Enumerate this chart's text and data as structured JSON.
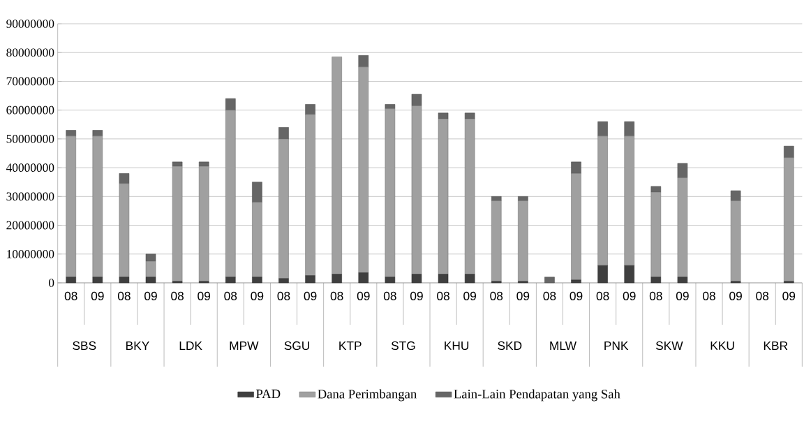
{
  "chart_data": {
    "type": "bar",
    "stacked": true,
    "categories": [
      "08",
      "09",
      "08",
      "09",
      "08",
      "09",
      "08",
      "09",
      "08",
      "09",
      "08",
      "09",
      "08",
      "09",
      "08",
      "09",
      "08",
      "09",
      "08",
      "09",
      "08",
      "09",
      "08",
      "09",
      "08",
      "09",
      "08",
      "09"
    ],
    "annotations": [
      "SBS",
      "BKY",
      "LDK",
      "MPW",
      "SGU",
      "KTP",
      "STG",
      "KHU",
      "SKD",
      "MLW",
      "PNK",
      "SKW",
      "KKU",
      "KBR"
    ],
    "series": [
      {
        "name": "PAD",
        "color": "#3f3f3f",
        "values": [
          2000000,
          2000000,
          2000000,
          2000000,
          500000,
          500000,
          2000000,
          2000000,
          1500000,
          2500000,
          3000000,
          3500000,
          2000000,
          3000000,
          3000000,
          3000000,
          500000,
          500000,
          0,
          1000000,
          6000000,
          6000000,
          2000000,
          2000000,
          0,
          500000,
          0,
          500000
        ]
      },
      {
        "name": "Dana Perimbangan",
        "color": "#a0a0a0",
        "values": [
          49000000,
          49000000,
          32500000,
          5500000,
          40000000,
          40000000,
          58000000,
          26000000,
          48500000,
          56000000,
          75500000,
          71500000,
          58500000,
          58500000,
          54000000,
          54000000,
          28000000,
          28000000,
          0,
          37000000,
          45000000,
          45000000,
          29500000,
          34500000,
          0,
          28000000,
          0,
          43000000
        ]
      },
      {
        "name": "Lain-Lain Pendapatan yang Sah",
        "color": "#666666",
        "values": [
          2000000,
          2000000,
          3500000,
          2500000,
          1500000,
          1500000,
          4000000,
          7000000,
          4000000,
          3500000,
          0,
          4000000,
          1500000,
          4000000,
          2000000,
          2000000,
          1500000,
          1500000,
          2000000,
          4000000,
          5000000,
          5000000,
          2000000,
          5000000,
          0,
          3500000,
          0,
          4000000
        ]
      }
    ],
    "ylim": [
      0,
      90000000
    ],
    "yticks": [
      0,
      10000000,
      20000000,
      30000000,
      40000000,
      50000000,
      60000000,
      70000000,
      80000000,
      90000000
    ],
    "grid": "y",
    "legend": "bottom"
  }
}
